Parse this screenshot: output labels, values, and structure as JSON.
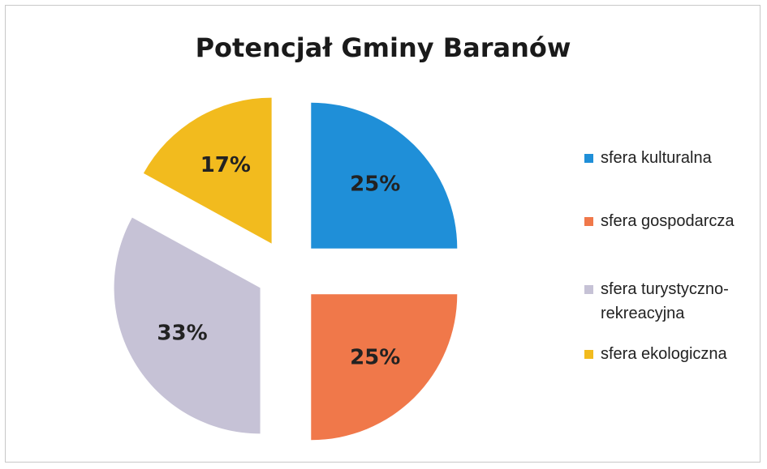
{
  "chart_data": {
    "type": "pie",
    "title": "Potencjał Gminy Baranów",
    "categories": [
      "sfera kulturalna",
      "sfera gospodarcza",
      "sfera turystyczno-rekreacyjna",
      "sfera ekologiczna"
    ],
    "values": [
      25,
      25,
      33,
      17
    ],
    "value_labels": [
      "25%",
      "25%",
      "33%",
      "17%"
    ],
    "colors": [
      "#1f8fd8",
      "#f0784a",
      "#c6c2d6",
      "#f2bb1e"
    ],
    "legend": "right"
  }
}
